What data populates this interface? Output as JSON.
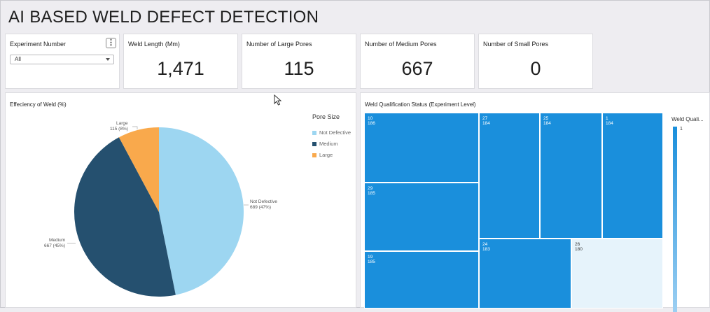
{
  "dashboard": {
    "title": "AI BASED WELD DEFECT DETECTION"
  },
  "filter": {
    "label": "Experiment Number",
    "selected": "All",
    "menu_icon": "more-vertical-icon"
  },
  "kpis": [
    {
      "label": "Weld Length (Mm)",
      "value": "1,471"
    },
    {
      "label": "Number of Large Pores",
      "value": "115"
    },
    {
      "label": "Number of Medium Pores",
      "value": "667"
    },
    {
      "label": "Number of Small Pores",
      "value": "0"
    }
  ],
  "pie_chart": {
    "title": "Effeciency of Weld (%)",
    "legend_title": "Pore Size",
    "legend": [
      "Not Defective",
      "Medium",
      "Large"
    ],
    "labels": [
      {
        "name": "Not Defective",
        "detail": "689 (47%)"
      },
      {
        "name": "Medium",
        "detail": "667 (45%)"
      },
      {
        "name": "Large",
        "detail": "115 (8%)"
      }
    ]
  },
  "treemap": {
    "title": "Weld Qualification Status (Experiment Level)",
    "legend_title": "Weld Quali...",
    "legend_value": "1",
    "cells": [
      {
        "id": "10",
        "value": "186"
      },
      {
        "id": "29",
        "value": "185"
      },
      {
        "id": "19",
        "value": "185"
      },
      {
        "id": "27",
        "value": "184"
      },
      {
        "id": "24",
        "value": "183"
      },
      {
        "id": "25",
        "value": "184"
      },
      {
        "id": "26",
        "value": "180"
      },
      {
        "id": "1",
        "value": "184"
      }
    ]
  },
  "chart_data": [
    {
      "type": "pie",
      "title": "Effeciency of Weld (%)",
      "legend_title": "Pore Size",
      "legend_position": "right",
      "categories": [
        "Not Defective",
        "Medium",
        "Large"
      ],
      "values": [
        689,
        667,
        115
      ],
      "percent": [
        47,
        45,
        8
      ],
      "colors": [
        "#9dd6f1",
        "#25506f",
        "#f9a94c"
      ]
    },
    {
      "type": "heatmap",
      "title": "Weld Qualification Status (Experiment Level)",
      "categories": [
        "10",
        "29",
        "19",
        "27",
        "24",
        "25",
        "26",
        "1"
      ],
      "values": [
        186,
        185,
        185,
        184,
        183,
        184,
        180,
        184
      ],
      "color_value": [
        1,
        1,
        1,
        1,
        1,
        1,
        0,
        1
      ],
      "legend_title": "Weld Quali...",
      "legend_position": "right",
      "colors": [
        "#1a8fdc",
        "#e6f3fb"
      ]
    }
  ],
  "colors": {
    "accent": "#1a8fdc",
    "background": "#eeedf1",
    "card": "#ffffff"
  }
}
